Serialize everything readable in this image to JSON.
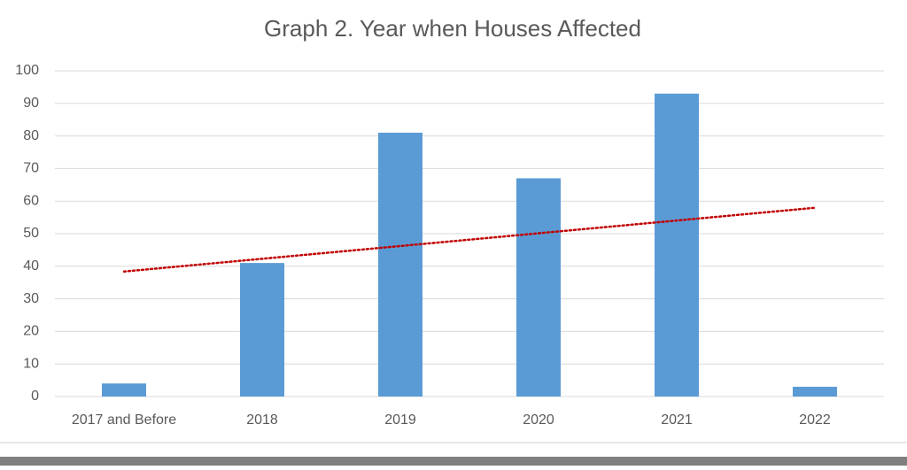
{
  "chart_data": {
    "type": "bar",
    "title": "Graph 2. Year when Houses Affected",
    "categories": [
      "2017 and Before",
      "2018",
      "2019",
      "2020",
      "2021",
      "2022"
    ],
    "values": [
      4,
      41,
      81,
      67,
      93,
      3
    ],
    "color": "#5b9bd5",
    "ylim": [
      0,
      100
    ],
    "yticks": [
      0,
      10,
      20,
      30,
      40,
      50,
      60,
      70,
      80,
      90,
      100
    ],
    "grid": true,
    "trendline": "linear",
    "trendline_color": "#c00000"
  }
}
